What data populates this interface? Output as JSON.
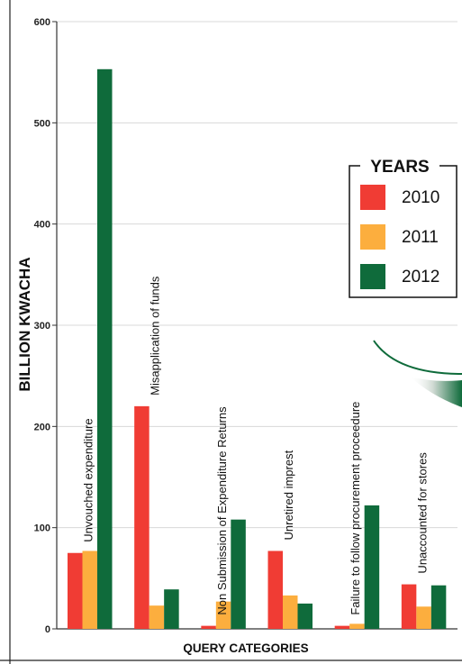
{
  "chart_data": {
    "type": "bar",
    "ylabel": "BILLION KWACHA",
    "xlabel": "QUERY CATEGORIES",
    "ylim": [
      0,
      600
    ],
    "yticks": [
      0,
      100,
      200,
      300,
      400,
      500,
      600
    ],
    "grid": true,
    "legend_title": "YEARS",
    "legend_position": "right",
    "categories": [
      "Unvouched expenditure",
      "Misapplication of funds",
      "Non Submission  of Expenditure Returns",
      "Unretired imprest",
      "Failure to follow procurement proceedure",
      "Unaccounted for stores"
    ],
    "series": [
      {
        "name": "2010",
        "color": "#f03c34",
        "values": [
          75,
          220,
          3,
          77,
          3,
          44
        ]
      },
      {
        "name": "2011",
        "color": "#fcae3e",
        "values": [
          77,
          23,
          27,
          33,
          5,
          22
        ]
      },
      {
        "name": "2012",
        "color": "#0f6b3b",
        "values": [
          553,
          39,
          108,
          25,
          122,
          43
        ]
      }
    ]
  }
}
